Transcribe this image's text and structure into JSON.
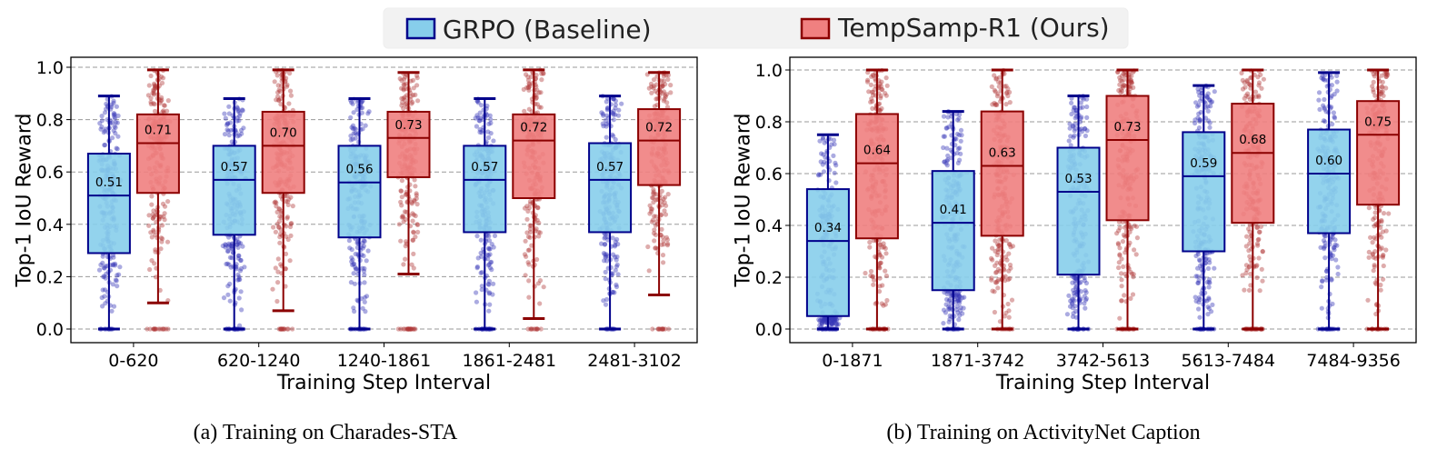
{
  "legend": {
    "items": [
      {
        "label": "GRPO (Baseline)",
        "face": "#87ceeb",
        "edge": "#00008b"
      },
      {
        "label": "TempSamp-R1 (Ours)",
        "face": "#f08080",
        "edge": "#8b0000"
      }
    ]
  },
  "chart_data": [
    {
      "type": "box",
      "panel": "a",
      "caption": "(a) Training on Charades-STA",
      "xlabel": "Training Step Interval",
      "ylabel": "Top-1 IoU Reward",
      "ylim": [
        -0.04,
        1.05
      ],
      "yticks": [
        "0.0",
        "0.2",
        "0.4",
        "0.6",
        "0.8",
        "1.0"
      ],
      "ytick_values": [
        0.0,
        0.2,
        0.4,
        0.6,
        0.8,
        1.0
      ],
      "grid": true,
      "categories": [
        "0-620",
        "620-1240",
        "1240-1861",
        "1861-2481",
        "2481-3102"
      ],
      "series": [
        {
          "name": "GRPO (Baseline)",
          "stats": [
            {
              "whislo": 0.0,
              "q1": 0.29,
              "med": 0.51,
              "q3": 0.67,
              "whishi": 0.89,
              "label": "0.51"
            },
            {
              "whislo": 0.0,
              "q1": 0.36,
              "med": 0.57,
              "q3": 0.7,
              "whishi": 0.88,
              "label": "0.57"
            },
            {
              "whislo": 0.0,
              "q1": 0.35,
              "med": 0.56,
              "q3": 0.7,
              "whishi": 0.88,
              "label": "0.56"
            },
            {
              "whislo": 0.0,
              "q1": 0.37,
              "med": 0.57,
              "q3": 0.7,
              "whishi": 0.88,
              "label": "0.57"
            },
            {
              "whislo": 0.0,
              "q1": 0.37,
              "med": 0.57,
              "q3": 0.71,
              "whishi": 0.89,
              "label": "0.57"
            }
          ]
        },
        {
          "name": "TempSamp-R1 (Ours)",
          "stats": [
            {
              "whislo": 0.1,
              "q1": 0.52,
              "med": 0.71,
              "q3": 0.82,
              "whishi": 0.99,
              "label": "0.71"
            },
            {
              "whislo": 0.07,
              "q1": 0.52,
              "med": 0.7,
              "q3": 0.83,
              "whishi": 0.99,
              "label": "0.70"
            },
            {
              "whislo": 0.21,
              "q1": 0.58,
              "med": 0.73,
              "q3": 0.83,
              "whishi": 0.98,
              "label": "0.73"
            },
            {
              "whislo": 0.04,
              "q1": 0.5,
              "med": 0.72,
              "q3": 0.82,
              "whishi": 0.99,
              "label": "0.72"
            },
            {
              "whislo": 0.13,
              "q1": 0.55,
              "med": 0.72,
              "q3": 0.84,
              "whishi": 0.98,
              "label": "0.72"
            }
          ]
        }
      ]
    },
    {
      "type": "box",
      "panel": "b",
      "caption": "(b) Training on ActivityNet Caption",
      "xlabel": "Training Step Interval",
      "ylabel": "Top-1 IoU Reward",
      "ylim": [
        -0.05,
        1.05
      ],
      "yticks": [
        "0.0",
        "0.2",
        "0.4",
        "0.6",
        "0.8",
        "1.0"
      ],
      "ytick_values": [
        0.0,
        0.2,
        0.4,
        0.6,
        0.8,
        1.0
      ],
      "grid": true,
      "categories": [
        "0-1871",
        "1871-3742",
        "3742-5613",
        "5613-7484",
        "7484-9356"
      ],
      "series": [
        {
          "name": "GRPO (Baseline)",
          "stats": [
            {
              "whislo": 0.0,
              "q1": 0.05,
              "med": 0.34,
              "q3": 0.54,
              "whishi": 0.75,
              "label": "0.34"
            },
            {
              "whislo": 0.0,
              "q1": 0.15,
              "med": 0.41,
              "q3": 0.61,
              "whishi": 0.84,
              "label": "0.41"
            },
            {
              "whislo": 0.0,
              "q1": 0.21,
              "med": 0.53,
              "q3": 0.7,
              "whishi": 0.9,
              "label": "0.53"
            },
            {
              "whislo": 0.0,
              "q1": 0.3,
              "med": 0.59,
              "q3": 0.76,
              "whishi": 0.94,
              "label": "0.59"
            },
            {
              "whislo": 0.0,
              "q1": 0.37,
              "med": 0.6,
              "q3": 0.77,
              "whishi": 0.99,
              "label": "0.60"
            }
          ]
        },
        {
          "name": "TempSamp-R1 (Ours)",
          "stats": [
            {
              "whislo": 0.0,
              "q1": 0.35,
              "med": 0.64,
              "q3": 0.83,
              "whishi": 1.0,
              "label": "0.64"
            },
            {
              "whislo": 0.0,
              "q1": 0.36,
              "med": 0.63,
              "q3": 0.84,
              "whishi": 1.0,
              "label": "0.63"
            },
            {
              "whislo": 0.0,
              "q1": 0.42,
              "med": 0.73,
              "q3": 0.9,
              "whishi": 1.0,
              "label": "0.73"
            },
            {
              "whislo": 0.0,
              "q1": 0.41,
              "med": 0.68,
              "q3": 0.87,
              "whishi": 1.0,
              "label": "0.68"
            },
            {
              "whislo": 0.0,
              "q1": 0.48,
              "med": 0.75,
              "q3": 0.88,
              "whishi": 1.0,
              "label": "0.75"
            }
          ]
        }
      ]
    }
  ]
}
